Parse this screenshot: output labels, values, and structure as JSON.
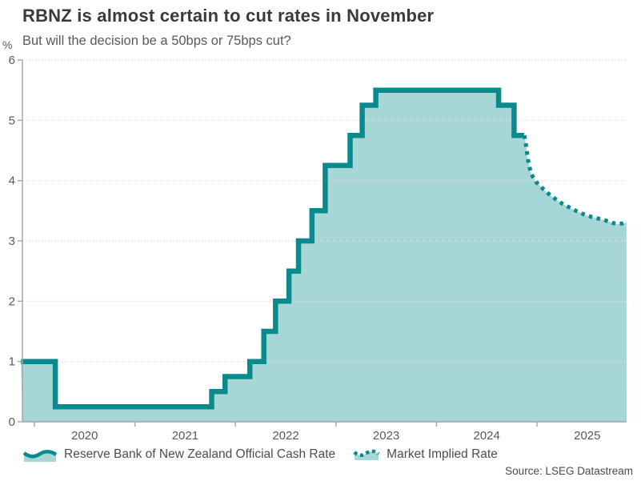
{
  "title": "RBNZ is almost certain to cut rates in November",
  "subtitle": "But will the decision be a 50bps or 75bps cut?",
  "source": "Source: LSEG Datastream",
  "y_axis": {
    "unit_label": "%",
    "ticks": [
      0,
      1,
      2,
      3,
      4,
      5,
      6
    ]
  },
  "x_axis": {
    "ticks": [
      2020,
      2021,
      2022,
      2023,
      2024,
      2025
    ]
  },
  "legend": {
    "items": [
      {
        "label": "Reserve Bank of New Zealand Official Cash Rate",
        "style": "solid-area"
      },
      {
        "label": "Market Implied Rate",
        "style": "dotted-line"
      }
    ]
  },
  "colors": {
    "line": "#0b8a8d",
    "fill": "#a6d6d5",
    "grid": "#dedede",
    "axis": "#a3a3a3",
    "title": "#3a3a3a",
    "text": "#595959",
    "legend_text": "#4d4d4d",
    "source": "#4a4a4a"
  },
  "chart_data": {
    "type": "area",
    "title": "RBNZ is almost certain to cut rates in November",
    "subtitle": "But will the decision be a 50bps or 75bps cut?",
    "ylabel": "%",
    "ylim": [
      0,
      6
    ],
    "xlim": [
      2019.88,
      2025.89
    ],
    "grid": "dotted-horizontal",
    "legend_position": "bottom",
    "series": [
      {
        "name": "Reserve Bank of New Zealand Official Cash Rate",
        "style": "step-solid",
        "points": [
          [
            "2019-11-13",
            1.0
          ],
          [
            "2020-03-16",
            0.25
          ],
          [
            "2021-10-06",
            0.5
          ],
          [
            "2021-11-24",
            0.75
          ],
          [
            "2022-02-23",
            1.0
          ],
          [
            "2022-04-13",
            1.5
          ],
          [
            "2022-05-25",
            2.0
          ],
          [
            "2022-07-13",
            2.5
          ],
          [
            "2022-08-17",
            3.0
          ],
          [
            "2022-10-05",
            3.5
          ],
          [
            "2022-11-23",
            4.25
          ],
          [
            "2023-02-22",
            4.75
          ],
          [
            "2023-04-05",
            5.25
          ],
          [
            "2023-05-24",
            5.5
          ],
          [
            "2024-08-14",
            5.25
          ],
          [
            "2024-10-09",
            4.75
          ],
          [
            "2024-11-15",
            4.75
          ]
        ]
      },
      {
        "name": "Market Implied Rate",
        "style": "dotted-line",
        "points": [
          [
            2024.875,
            4.75
          ],
          [
            2024.89,
            4.6
          ],
          [
            2024.91,
            4.35
          ],
          [
            2024.94,
            4.12
          ],
          [
            2024.99,
            3.98
          ],
          [
            2025.05,
            3.88
          ],
          [
            2025.11,
            3.79
          ],
          [
            2025.18,
            3.7
          ],
          [
            2025.25,
            3.62
          ],
          [
            2025.33,
            3.55
          ],
          [
            2025.4,
            3.49
          ],
          [
            2025.47,
            3.44
          ],
          [
            2025.54,
            3.4
          ],
          [
            2025.61,
            3.37
          ],
          [
            2025.68,
            3.34
          ],
          [
            2025.75,
            3.3
          ],
          [
            2025.8,
            3.28
          ],
          [
            2025.85,
            3.29
          ],
          [
            2025.89,
            3.31
          ]
        ]
      }
    ]
  }
}
